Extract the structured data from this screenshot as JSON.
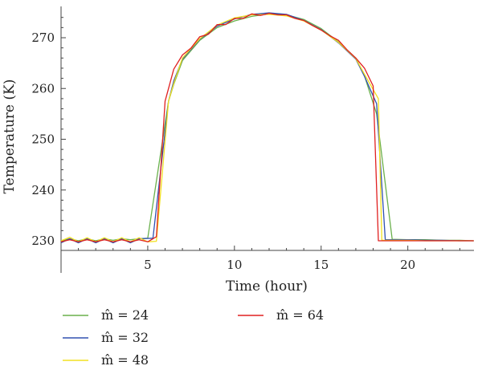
{
  "chart_data": {
    "type": "line",
    "title": "",
    "xlabel": "Time (hour)",
    "ylabel": "Temperature (K)",
    "xlim": [
      0,
      24
    ],
    "ylim": [
      228,
      275
    ],
    "x_ticks": [
      "5",
      "10",
      "15",
      "20"
    ],
    "y_ticks": [
      "230",
      "240",
      "250",
      "260",
      "270"
    ],
    "grid": false,
    "legend_position": "bottom",
    "series": [
      {
        "name": "m̂ = 24",
        "color": "#6ab04c",
        "x": [
          0,
          0.5,
          1,
          1.5,
          2,
          2.5,
          3,
          3.5,
          4,
          4.5,
          5.0,
          6.2,
          6.5,
          7.0,
          8,
          9,
          10,
          11,
          12,
          13,
          14,
          15,
          16,
          17,
          17.5,
          18.2,
          19.1,
          20,
          21,
          22,
          23,
          23.8
        ],
        "y": [
          230.0,
          230.4,
          230.0,
          230.4,
          230.0,
          230.4,
          230.1,
          230.4,
          230.2,
          230.4,
          230.5,
          257.5,
          260.8,
          265.5,
          269.5,
          272.0,
          273.3,
          274.2,
          274.7,
          274.5,
          273.6,
          271.8,
          269.2,
          266.0,
          262.5,
          255.0,
          230.3,
          230.2,
          230.2,
          230.1,
          230.1,
          230.0
        ]
      },
      {
        "name": "m̂ = 32",
        "color": "#3050b0",
        "x": [
          0,
          0.5,
          1,
          1.5,
          2,
          2.5,
          3,
          3.5,
          4,
          4.5,
          5.3,
          6.2,
          6.5,
          7.0,
          8,
          9,
          10,
          11,
          12,
          13,
          14,
          15,
          16,
          17,
          17.5,
          18.2,
          18.7,
          20,
          21,
          22,
          23,
          23.8
        ],
        "y": [
          229.6,
          230.4,
          229.6,
          230.4,
          229.6,
          230.4,
          229.6,
          230.4,
          229.6,
          230.4,
          230.5,
          257.5,
          261.5,
          265.8,
          269.7,
          272.3,
          273.7,
          274.6,
          274.9,
          274.6,
          273.4,
          271.6,
          269.0,
          265.8,
          262.4,
          257.0,
          230.2,
          230.2,
          230.1,
          230.1,
          230.0,
          230.0
        ]
      },
      {
        "name": "m̂ = 48",
        "color": "#f2e020",
        "x": [
          0,
          0.5,
          1,
          1.5,
          2,
          2.5,
          3,
          3.5,
          4,
          4.5,
          5.0,
          5.5,
          6.2,
          6.5,
          7.0,
          8,
          9,
          10,
          11,
          12,
          13,
          14,
          15,
          16,
          17,
          17.5,
          18.3,
          18.5,
          20,
          21,
          22,
          23,
          23.8
        ],
        "y": [
          230.0,
          230.7,
          229.8,
          230.6,
          229.8,
          230.6,
          229.8,
          230.6,
          229.8,
          230.6,
          229.8,
          229.9,
          257.5,
          261.0,
          266.0,
          269.8,
          272.5,
          273.9,
          274.5,
          274.6,
          274.3,
          273.3,
          271.5,
          269.1,
          265.9,
          262.8,
          258.0,
          230.1,
          230.1,
          230.0,
          230.0,
          230.0,
          230.0
        ]
      },
      {
        "name": "m̂ = 64",
        "color": "#e02020",
        "x": [
          0,
          0.5,
          1,
          1.5,
          2,
          2.5,
          3,
          3.5,
          4,
          4.5,
          5.0,
          5.5,
          6.0,
          6.5,
          7.0,
          7.5,
          8.0,
          8.5,
          9.0,
          9.5,
          10.0,
          10.5,
          11.0,
          11.5,
          12.0,
          12.5,
          13.0,
          13.5,
          14.0,
          14.5,
          15.0,
          15.5,
          16.0,
          16.5,
          17.0,
          17.5,
          18.0,
          18.3,
          19.0,
          20,
          21,
          22,
          23,
          23.8
        ],
        "y": [
          229.8,
          230.2,
          229.8,
          230.2,
          229.8,
          230.2,
          229.8,
          230.2,
          229.8,
          230.2,
          229.8,
          230.8,
          257.5,
          263.8,
          266.6,
          268.0,
          270.2,
          270.7,
          272.6,
          272.6,
          273.8,
          273.8,
          274.7,
          274.4,
          274.8,
          274.5,
          274.5,
          273.8,
          273.4,
          272.4,
          271.5,
          270.4,
          269.5,
          267.6,
          266.0,
          264.0,
          260.5,
          230.0,
          230.0,
          230.0,
          230.0,
          230.0,
          230.0,
          230.0
        ]
      }
    ]
  }
}
